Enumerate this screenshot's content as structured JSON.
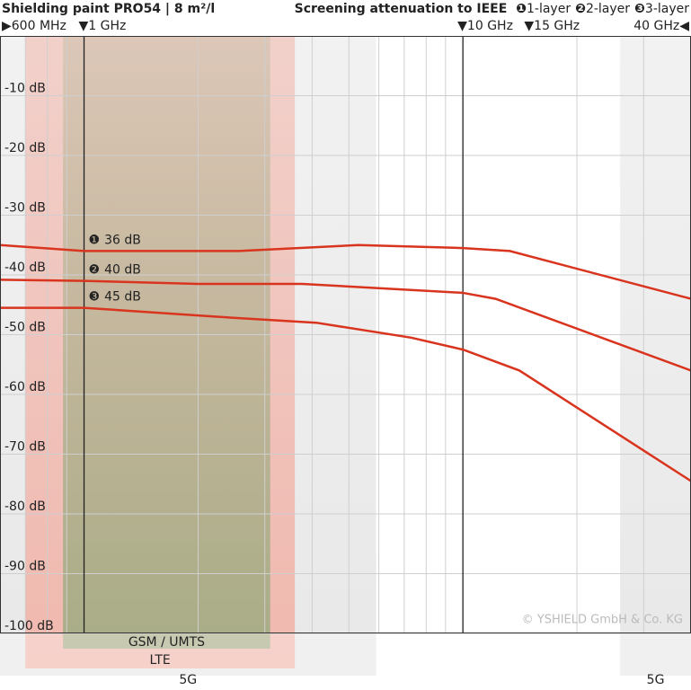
{
  "chart_data": {
    "type": "line",
    "title": "Shielding paint PRO54 | 8 m²/l",
    "subtitle": "Screening attenuation to IEEE",
    "credit": "© YSHIELD GmbH & Co. KG",
    "xscale": "log",
    "xlim": [
      0.6,
      40
    ],
    "xticks": [
      {
        "value": 0.6,
        "label": "▶600 MHz"
      },
      {
        "value": 1,
        "label": "▼1 GHz"
      },
      {
        "value": 10,
        "label": "▼10 GHz"
      },
      {
        "value": 15,
        "label": "▼15 GHz"
      },
      {
        "value": 40,
        "label": "40 GHz◀"
      }
    ],
    "xlines": [
      1,
      10
    ],
    "xgrid": [
      0.7,
      0.8,
      0.9,
      2,
      3,
      4,
      5,
      6,
      7,
      8,
      9,
      20,
      30
    ],
    "ylim": [
      -100,
      0
    ],
    "yticks": [
      {
        "value": -10,
        "label": "-10 dB"
      },
      {
        "value": -20,
        "label": "-20 dB"
      },
      {
        "value": -30,
        "label": "-30 dB"
      },
      {
        "value": -40,
        "label": "-40 dB"
      },
      {
        "value": -50,
        "label": "-50 dB"
      },
      {
        "value": -60,
        "label": "-60 dB"
      },
      {
        "value": -70,
        "label": "-70 dB"
      },
      {
        "value": -80,
        "label": "-80 dB"
      },
      {
        "value": -90,
        "label": "-90 dB"
      },
      {
        "value": -100,
        "label": "-100 dB"
      }
    ],
    "grid": true,
    "bands": [
      {
        "label": "5G",
        "range": [
          0.6,
          5.9
        ],
        "color": "#e4e4e4"
      },
      {
        "label": "5G",
        "range": [
          26,
          40
        ],
        "color": "#e4e4e4"
      },
      {
        "label": "LTE",
        "range": [
          0.7,
          3.6
        ],
        "color": "#f2b0a4"
      },
      {
        "label": "GSM / UMTS",
        "range": [
          0.88,
          3.1
        ],
        "color": "#9cab80"
      }
    ],
    "series": [
      {
        "name": "1-layer",
        "symbol": "❶",
        "annotation": "36 dB",
        "color": "#d9341e",
        "x": [
          0.6,
          1,
          2.56,
          5.3,
          10,
          13.3,
          40
        ],
        "values": [
          -35,
          -36,
          -36,
          -35,
          -35.5,
          -36,
          -44
        ]
      },
      {
        "name": "2-layer",
        "symbol": "❷",
        "annotation": "40 dB",
        "color": "#d9341e",
        "x": [
          0.6,
          1,
          2,
          3.76,
          10,
          12.2,
          40
        ],
        "values": [
          -40.8,
          -41,
          -41.5,
          -41.5,
          -43,
          -44,
          -56
        ]
      },
      {
        "name": "3-layer",
        "symbol": "❸",
        "annotation": "45 dB",
        "color": "#d9341e",
        "x": [
          0.6,
          1,
          2.24,
          4.1,
          7.3,
          10,
          14.1,
          40
        ],
        "values": [
          -45.5,
          -45.5,
          -47,
          -48,
          -50.5,
          -52.5,
          -56,
          -74.5
        ]
      }
    ]
  }
}
